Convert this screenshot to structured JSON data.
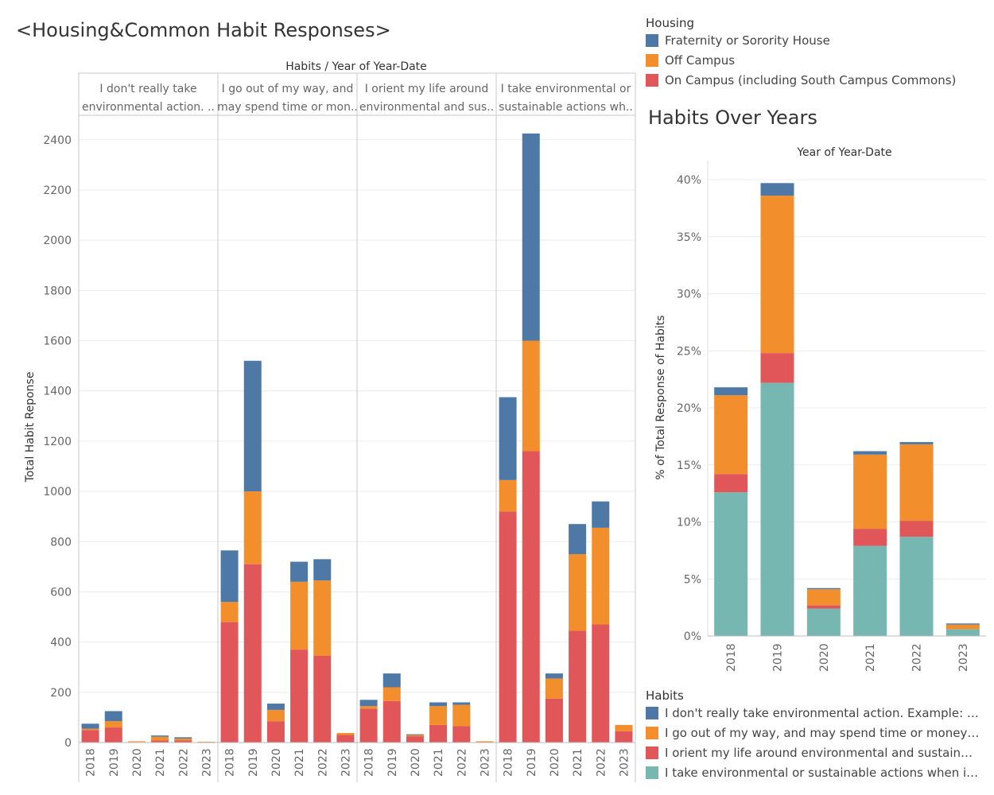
{
  "main_title": "<Housing&Common Habit Responses>",
  "side_title": "Habits Over Years",
  "colors": {
    "fraternity": "#4e79a7",
    "off_campus": "#f28e2b",
    "on_campus": "#e15759",
    "teal": "#76b7b2",
    "grid": "#ececec",
    "panel_border": "#c8c8c8"
  },
  "housing_legend": {
    "title": "Housing",
    "items": [
      {
        "label": "Fraternity or Sorority House",
        "color": "#4e79a7"
      },
      {
        "label": "Off Campus",
        "color": "#f28e2b"
      },
      {
        "label": "On Campus (including South Campus Commons)",
        "color": "#e15759"
      }
    ]
  },
  "habits_legend": {
    "title": "Habits",
    "items": [
      {
        "label": "I don't really take environmental action. Example: I ma..",
        "color": "#4e79a7"
      },
      {
        "label": "I go out of my way, and may spend time or money, to b..",
        "color": "#f28e2b"
      },
      {
        "label": "I orient my life around environmental and sustainable c..",
        "color": "#e15759"
      },
      {
        "label": "I take environmental or sustainable actions when it's c..",
        "color": "#76b7b2"
      }
    ]
  },
  "chart_data": [
    {
      "type": "bar",
      "stacked": true,
      "header": "Habits  /  Year of Year-Date",
      "ylabel": "Total Habit Reponse",
      "ylim": [
        0,
        2450
      ],
      "yticks": [
        0,
        200,
        400,
        600,
        800,
        1000,
        1200,
        1400,
        1600,
        1800,
        2000,
        2200,
        2400
      ],
      "categories": [
        "2018",
        "2019",
        "2020",
        "2021",
        "2022",
        "2023"
      ],
      "panels": [
        {
          "label_lines": [
            "I don't really take",
            "environmental action. .."
          ],
          "series": [
            {
              "name": "On Campus (including South Campus Commons)",
              "values": [
                50,
                60,
                2,
                8,
                8,
                0
              ]
            },
            {
              "name": "Off Campus",
              "values": [
                5,
                25,
                3,
                15,
                8,
                0
              ]
            },
            {
              "name": "Fraternity or Sorority House",
              "values": [
                20,
                40,
                0,
                5,
                5,
                0
              ]
            }
          ]
        },
        {
          "label_lines": [
            "I go out of my way, and",
            "may spend time or mon.."
          ],
          "series": [
            {
              "name": "On Campus (including South Campus Commons)",
              "values": [
                480,
                710,
                85,
                370,
                345,
                30
              ]
            },
            {
              "name": "Off Campus",
              "values": [
                80,
                290,
                45,
                270,
                300,
                8
              ]
            },
            {
              "name": "Fraternity or Sorority House",
              "values": [
                205,
                520,
                25,
                80,
                85,
                0
              ]
            }
          ]
        },
        {
          "label_lines": [
            "I orient my life around",
            "environmental and sus.."
          ],
          "series": [
            {
              "name": "On Campus (including South Campus Commons)",
              "values": [
                135,
                165,
                25,
                70,
                65,
                0
              ]
            },
            {
              "name": "Off Campus",
              "values": [
                10,
                55,
                5,
                75,
                85,
                5
              ]
            },
            {
              "name": "Fraternity or Sorority House",
              "values": [
                25,
                55,
                3,
                15,
                10,
                0
              ]
            }
          ]
        },
        {
          "label_lines": [
            "I take environmental or",
            "sustainable actions wh.."
          ],
          "series": [
            {
              "name": "On Campus (including South Campus Commons)",
              "values": [
                920,
                1160,
                175,
                445,
                470,
                45
              ]
            },
            {
              "name": "Off Campus",
              "values": [
                125,
                440,
                80,
                305,
                385,
                25
              ]
            },
            {
              "name": "Fraternity or Sorority House",
              "values": [
                330,
                825,
                20,
                120,
                105,
                0
              ]
            }
          ]
        }
      ]
    },
    {
      "type": "bar",
      "stacked": true,
      "title": "Habits Over Years",
      "xlabel": "Year of Year-Date",
      "ylabel": "% of  Total Response of  Habits",
      "ylim": [
        0,
        40
      ],
      "yticks": [
        0,
        5,
        10,
        15,
        20,
        25,
        30,
        35,
        40
      ],
      "ytick_labels": [
        "0%",
        "5%",
        "10%",
        "15%",
        "20%",
        "25%",
        "30%",
        "35%",
        "40%"
      ],
      "categories": [
        "2018",
        "2019",
        "2020",
        "2021",
        "2022",
        "2023"
      ],
      "series": [
        {
          "name": "I take environmental or sustainable actions when it's c..",
          "color": "#76b7b2",
          "values": [
            12.6,
            22.2,
            2.4,
            7.9,
            8.7,
            0.6
          ]
        },
        {
          "name": "I orient my life around environmental and sustainable c..",
          "color": "#e15759",
          "values": [
            1.6,
            2.6,
            0.3,
            1.5,
            1.4,
            0.0
          ]
        },
        {
          "name": "I go out of my way, and may spend time or money, to b..",
          "color": "#f28e2b",
          "values": [
            6.9,
            13.8,
            1.4,
            6.5,
            6.7,
            0.4
          ]
        },
        {
          "name": "I don't really take environmental action. Example: I ma..",
          "color": "#4e79a7",
          "values": [
            0.7,
            1.1,
            0.1,
            0.3,
            0.2,
            0.1
          ]
        }
      ]
    }
  ]
}
